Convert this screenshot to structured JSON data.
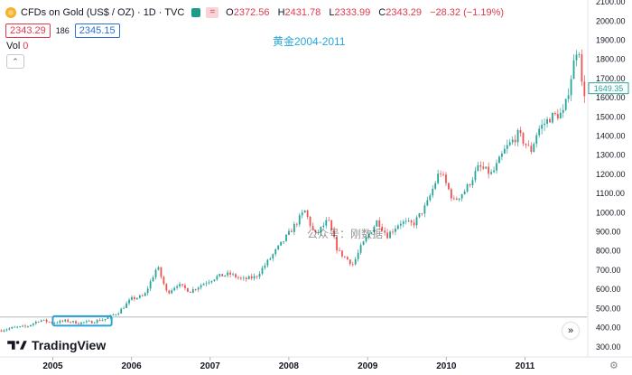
{
  "header": {
    "symbol_title": "CFDs on Gold (US$ / OZ) · 1D · TVC",
    "open_key": "O",
    "open": "2372.56",
    "high_key": "H",
    "high": "2431.78",
    "low_key": "L",
    "low": "2333.99",
    "close_key": "C",
    "close": "2343.29",
    "change": "−28.32 (−1.19%)",
    "eq_label": "="
  },
  "quote": {
    "bid": "2343.29",
    "spread": "186",
    "ask": "2345.15"
  },
  "volume": {
    "label": "Vol",
    "value": "0"
  },
  "collapse_icon": "chevron-up-icon",
  "annotation_title": "黄金2004-2011",
  "watermark": "公众号：刚数据",
  "brand": "TradingView",
  "last_price_label": "1649.35",
  "colors": {
    "up": "#26a69a",
    "down": "#ef5350",
    "box": "#2aa6d8",
    "accent": "#e03a4e"
  },
  "chart_data": {
    "type": "candlestick",
    "xlabel": "",
    "ylabel": "",
    "x_ticks": [
      "2005",
      "2006",
      "2007",
      "2008",
      "2009",
      "2010",
      "2011"
    ],
    "y_ticks": [
      "300.00",
      "400.00",
      "500.00",
      "600.00",
      "700.00",
      "800.00",
      "900.00",
      "1000.00",
      "1100.00",
      "1200.00",
      "1300.00",
      "1400.00",
      "1500.00",
      "1600.00",
      "1700.00",
      "1800.00",
      "1900.00",
      "2000.00",
      "2100.00"
    ],
    "ylim": [
      280,
      2110
    ],
    "xlim": [
      "2004-05-01",
      "2011-10-15"
    ],
    "reference_line": 455,
    "highlight_box": {
      "x_start": "2005-01-01",
      "x_end": "2005-10-01",
      "y_low": 410,
      "y_high": 460
    },
    "series": [
      {
        "dates": [
          "2004-05-01",
          "2004-07-01",
          "2004-09-01",
          "2004-11-01",
          "2005-01-01",
          "2005-03-01",
          "2005-05-01",
          "2005-07-01",
          "2005-09-01",
          "2005-11-01",
          "2006-01-01",
          "2006-03-01",
          "2006-05-01",
          "2006-06-15",
          "2006-08-01",
          "2006-10-01",
          "2006-12-01",
          "2007-02-01",
          "2007-04-01",
          "2007-06-01",
          "2007-08-01",
          "2007-09-15",
          "2007-11-01",
          "2008-01-01",
          "2008-03-15",
          "2008-05-01",
          "2008-07-01",
          "2008-08-15",
          "2008-10-25",
          "2008-12-01",
          "2009-02-15",
          "2009-04-01",
          "2009-06-01",
          "2009-08-01",
          "2009-10-01",
          "2009-12-02",
          "2010-02-05",
          "2010-04-01",
          "2010-06-01",
          "2010-08-01",
          "2010-10-01",
          "2010-12-01",
          "2011-01-28",
          "2011-03-01",
          "2011-05-01",
          "2011-07-01",
          "2011-08-15",
          "2011-09-06",
          "2011-09-26",
          "2011-10-10"
        ],
        "values": [
          385,
          400,
          405,
          440,
          425,
          435,
          425,
          430,
          445,
          480,
          550,
          565,
          720,
          580,
          625,
          590,
          630,
          665,
          680,
          650,
          665,
          730,
          800,
          890,
          1010,
          880,
          960,
          800,
          730,
          820,
          960,
          880,
          950,
          940,
          1040,
          1220,
          1060,
          1120,
          1240,
          1200,
          1330,
          1410,
          1320,
          1430,
          1500,
          1520,
          1780,
          1900,
          1600,
          1650
        ]
      }
    ]
  }
}
